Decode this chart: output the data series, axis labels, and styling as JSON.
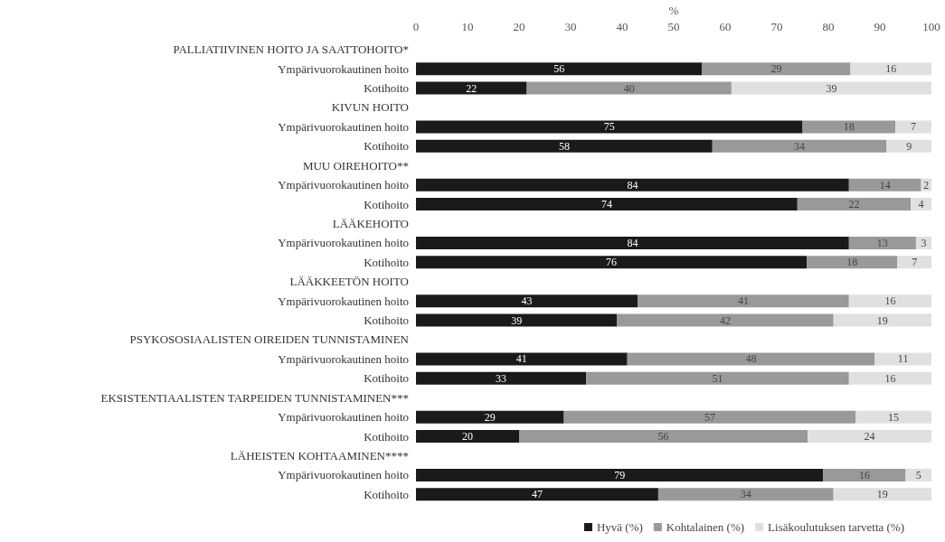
{
  "chart_data": {
    "type": "bar",
    "orientation": "horizontal",
    "stacked": true,
    "xlabel": "%",
    "xlim": [
      0,
      100
    ],
    "xticks": [
      0,
      10,
      20,
      30,
      40,
      50,
      60,
      70,
      80,
      90,
      100
    ],
    "grid": false,
    "legend": "bottom",
    "categories": [
      "PALLIATIIVINEN HOITO JA SAATTOHOITO*",
      "Ympärivuorokautinen hoito",
      "Kotihoito",
      "KIVUN HOITO",
      "Ympärivuorokautinen hoito",
      "Kotihoito",
      "MUU OIREHOITO**",
      "Ympärivuorokautinen hoito",
      "Kotihoito",
      "LÄÄKEHOITO",
      "Ympärivuorokautinen hoito",
      "Kotihoito",
      "LÄÄKKEETÖN HOITO",
      "Ympärivuorokautinen hoito",
      "Kotihoito",
      "PSYKOSOSIAALISTEN OIREIDEN TUNNISTAMINEN",
      "Ympärivuorokautinen hoito",
      "Kotihoito",
      "EKSISTENTIAALISTEN TARPEIDEN TUNNISTAMINEN***",
      "Ympärivuorokautinen hoito",
      "Kotihoito",
      "LÄHEISTEN KOHTAAMINEN****",
      "Ympärivuorokautinen hoito",
      "Kotihoito"
    ],
    "series": [
      {
        "name": "Hyvä (%)",
        "color": "#1a1a1a",
        "values": [
          null,
          55.5,
          21.5,
          null,
          75,
          57.5,
          null,
          84,
          74,
          null,
          84,
          75.8,
          null,
          43,
          39,
          null,
          41,
          33,
          null,
          28.7,
          20,
          null,
          79,
          47
        ],
        "value_labels": [
          null,
          "56",
          "22",
          null,
          "75",
          "58",
          null,
          "84",
          "74",
          null,
          "84",
          "76",
          null,
          "43",
          "39",
          null,
          "41",
          "33",
          null,
          "29",
          "20",
          null,
          "79",
          "47"
        ]
      },
      {
        "name": "Kohtalainen (%)",
        "color": "#999999",
        "values": [
          null,
          28.8,
          39.7,
          null,
          18,
          33.8,
          null,
          14,
          22,
          null,
          13,
          17.6,
          null,
          41,
          42,
          null,
          48,
          51,
          null,
          56.6,
          56,
          null,
          16,
          34
        ],
        "value_labels": [
          null,
          "29",
          "40",
          null,
          "18",
          "34",
          null,
          "14",
          "22",
          null,
          "13",
          "18",
          null,
          "41",
          "42",
          null,
          "48",
          "51",
          null,
          "57",
          "56",
          null,
          "16",
          "34"
        ]
      },
      {
        "name": "Lisäkoulutuksen tarvetta (%)",
        "color": "#e0e0e0",
        "values": [
          null,
          15.7,
          38.8,
          null,
          7,
          8.7,
          null,
          2,
          4,
          null,
          3,
          6.6,
          null,
          16,
          19,
          null,
          11,
          16,
          null,
          14.7,
          24,
          null,
          5,
          19
        ],
        "value_labels": [
          null,
          "16",
          "39",
          null,
          "7",
          "9",
          null,
          "2",
          "4",
          null,
          "3",
          "7",
          null,
          "16",
          "19",
          null,
          "11",
          "16",
          null,
          "15",
          "24",
          null,
          "5",
          "19"
        ]
      }
    ]
  }
}
